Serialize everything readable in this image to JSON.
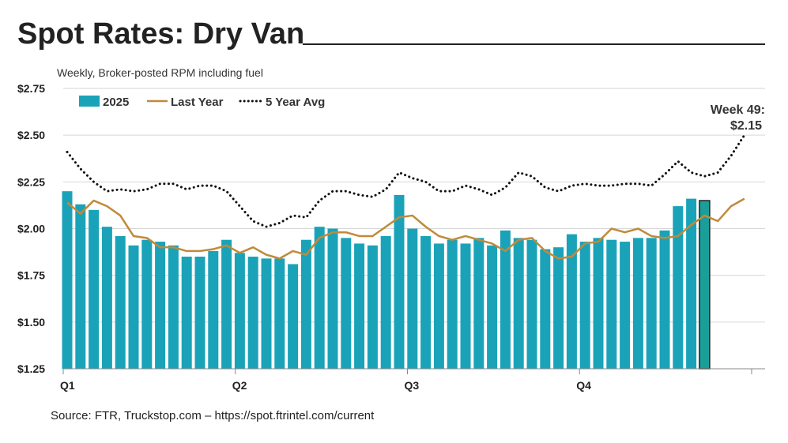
{
  "title": "Spot Rates: Dry Van",
  "subtitle": "Weekly, Broker-posted RPM including fuel",
  "source": "Source: FTR, Truckstop.com – https://spot.ftrintel.com/current",
  "chart_data": {
    "type": "bar",
    "ylim": [
      1.25,
      2.75
    ],
    "yticks": [
      "$1.25",
      "$1.50",
      "$1.75",
      "$2.00",
      "$2.25",
      "$2.50",
      "$2.75"
    ],
    "ytick_values": [
      1.25,
      1.5,
      1.75,
      2.0,
      2.25,
      2.5,
      2.75
    ],
    "xticks": [
      "Q1",
      "Q2",
      "Q3",
      "Q4"
    ],
    "weeks": 52,
    "grid": true,
    "legend_placement": "top-left",
    "annotation": {
      "line1": "Week 49:",
      "line2": "$2.15"
    },
    "colors": {
      "bars": "#1aa3b8",
      "highlight": "#1a9e9a",
      "last_year": "#c08a3a",
      "five_year": "#111111"
    },
    "series": [
      {
        "name": "2025",
        "type": "bar",
        "values": [
          2.2,
          2.13,
          2.1,
          2.01,
          1.96,
          1.91,
          1.94,
          1.93,
          1.91,
          1.85,
          1.85,
          1.88,
          1.94,
          1.87,
          1.85,
          1.84,
          1.84,
          1.81,
          1.94,
          2.01,
          2.0,
          1.95,
          1.92,
          1.91,
          1.96,
          2.18,
          2.0,
          1.96,
          1.92,
          1.94,
          1.92,
          1.95,
          1.91,
          1.99,
          1.95,
          1.94,
          1.89,
          1.9,
          1.97,
          1.93,
          1.95,
          1.94,
          1.93,
          1.95,
          1.95,
          1.99,
          2.12,
          2.16,
          2.15
        ]
      },
      {
        "name": "Last Year",
        "type": "line",
        "values": [
          2.14,
          2.08,
          2.15,
          2.12,
          2.07,
          1.96,
          1.95,
          1.9,
          1.9,
          1.88,
          1.88,
          1.89,
          1.91,
          1.87,
          1.9,
          1.86,
          1.84,
          1.88,
          1.86,
          1.95,
          1.98,
          1.98,
          1.96,
          1.96,
          2.01,
          2.06,
          2.07,
          2.01,
          1.96,
          1.94,
          1.96,
          1.94,
          1.92,
          1.88,
          1.94,
          1.95,
          1.88,
          1.84,
          1.85,
          1.92,
          1.93,
          2.0,
          1.98,
          2.0,
          1.96,
          1.95,
          1.96,
          2.02,
          2.07,
          2.04,
          2.12,
          2.16
        ]
      },
      {
        "name": "5 Year Avg",
        "type": "dotted-line",
        "values": [
          2.41,
          2.32,
          2.25,
          2.2,
          2.21,
          2.2,
          2.21,
          2.24,
          2.24,
          2.21,
          2.23,
          2.23,
          2.2,
          2.12,
          2.04,
          2.01,
          2.03,
          2.07,
          2.06,
          2.15,
          2.2,
          2.2,
          2.18,
          2.17,
          2.21,
          2.3,
          2.27,
          2.25,
          2.2,
          2.2,
          2.23,
          2.21,
          2.18,
          2.22,
          2.3,
          2.28,
          2.22,
          2.2,
          2.23,
          2.24,
          2.23,
          2.23,
          2.24,
          2.24,
          2.23,
          2.29,
          2.36,
          2.3,
          2.28,
          2.3,
          2.39,
          2.5
        ]
      }
    ]
  }
}
